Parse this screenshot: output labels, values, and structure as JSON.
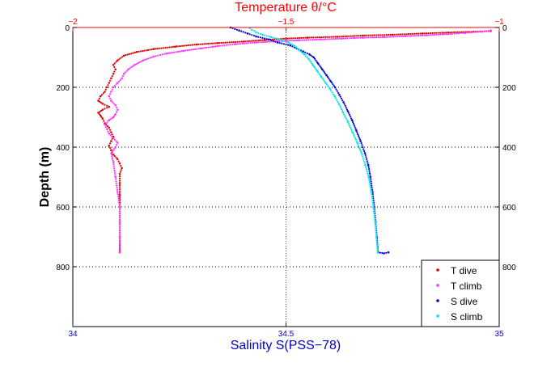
{
  "chart_data": {
    "type": "scatter",
    "title": "",
    "top_axis_label": "Temperature θ/°C",
    "bottom_axis_label": "Salinity S(PSS−78)",
    "ylabel": "Depth (m)",
    "top_axis": {
      "range": [
        -2,
        -1
      ],
      "ticks": [
        -2,
        -1.5,
        -1
      ],
      "tick_labels": [
        "−2",
        "−1.5",
        "−1"
      ]
    },
    "bottom_axis": {
      "range": [
        34,
        35
      ],
      "ticks": [
        34,
        34.5,
        35
      ],
      "tick_labels": [
        "34",
        "34.5",
        "35"
      ]
    },
    "y_axis": {
      "range": [
        0,
        1000
      ],
      "reversed": true,
      "ticks": [
        0,
        200,
        400,
        600,
        800
      ],
      "tick_labels": [
        "0",
        "200",
        "400",
        "600",
        "800"
      ]
    },
    "grid": true,
    "legend_position": "bottom-right",
    "colors": {
      "top_axis": "#ff0000",
      "bottom_axis": "#0000cc",
      "frame": "#000000"
    },
    "series": [
      {
        "name": "T dive",
        "axis": "top",
        "color": "#dd0000",
        "marker": "dot",
        "points": [
          [
            -1.02,
            12
          ],
          [
            -1.06,
            14
          ],
          [
            -1.12,
            17
          ],
          [
            -1.18,
            20
          ],
          [
            -1.25,
            24
          ],
          [
            -1.32,
            27
          ],
          [
            -1.38,
            31
          ],
          [
            -1.45,
            34
          ],
          [
            -1.5,
            37
          ],
          [
            -1.55,
            42
          ],
          [
            -1.6,
            47
          ],
          [
            -1.66,
            52
          ],
          [
            -1.71,
            57
          ],
          [
            -1.76,
            64
          ],
          [
            -1.81,
            72
          ],
          [
            -1.85,
            82
          ],
          [
            -1.88,
            94
          ],
          [
            -1.895,
            110
          ],
          [
            -1.905,
            125
          ],
          [
            -1.9,
            140
          ],
          [
            -1.905,
            155
          ],
          [
            -1.91,
            170
          ],
          [
            -1.915,
            185
          ],
          [
            -1.92,
            200
          ],
          [
            -1.925,
            215
          ],
          [
            -1.935,
            230
          ],
          [
            -1.94,
            245
          ],
          [
            -1.93,
            255
          ],
          [
            -1.915,
            265
          ],
          [
            -1.93,
            275
          ],
          [
            -1.94,
            285
          ],
          [
            -1.935,
            295
          ],
          [
            -1.93,
            305
          ],
          [
            -1.925,
            320
          ],
          [
            -1.915,
            335
          ],
          [
            -1.91,
            350
          ],
          [
            -1.905,
            365
          ],
          [
            -1.91,
            380
          ],
          [
            -1.915,
            395
          ],
          [
            -1.91,
            410
          ],
          [
            -1.905,
            425
          ],
          [
            -1.895,
            440
          ],
          [
            -1.89,
            455
          ],
          [
            -1.885,
            470
          ],
          [
            -1.89,
            490
          ],
          [
            -1.89,
            520
          ],
          [
            -1.89,
            560
          ],
          [
            -1.89,
            600
          ],
          [
            -1.89,
            650
          ],
          [
            -1.89,
            700
          ],
          [
            -1.89,
            750
          ]
        ]
      },
      {
        "name": "T climb",
        "axis": "top",
        "color": "#ff33ff",
        "marker": "dot",
        "points": [
          [
            -1.89,
            752
          ],
          [
            -1.89,
            700
          ],
          [
            -1.89,
            650
          ],
          [
            -1.89,
            600
          ],
          [
            -1.895,
            550
          ],
          [
            -1.9,
            500
          ],
          [
            -1.905,
            450
          ],
          [
            -1.91,
            420
          ],
          [
            -1.9,
            400
          ],
          [
            -1.895,
            385
          ],
          [
            -1.905,
            370
          ],
          [
            -1.915,
            355
          ],
          [
            -1.92,
            340
          ],
          [
            -1.925,
            325
          ],
          [
            -1.915,
            310
          ],
          [
            -1.905,
            300
          ],
          [
            -1.9,
            290
          ],
          [
            -1.895,
            275
          ],
          [
            -1.9,
            260
          ],
          [
            -1.91,
            245
          ],
          [
            -1.915,
            230
          ],
          [
            -1.91,
            215
          ],
          [
            -1.905,
            200
          ],
          [
            -1.895,
            185
          ],
          [
            -1.885,
            170
          ],
          [
            -1.88,
            155
          ],
          [
            -1.87,
            140
          ],
          [
            -1.855,
            125
          ],
          [
            -1.835,
            110
          ],
          [
            -1.81,
            97
          ],
          [
            -1.78,
            87
          ],
          [
            -1.74,
            78
          ],
          [
            -1.7,
            70
          ],
          [
            -1.66,
            62
          ],
          [
            -1.62,
            56
          ],
          [
            -1.57,
            50
          ],
          [
            -1.52,
            46
          ],
          [
            -1.47,
            43
          ],
          [
            -1.42,
            40
          ],
          [
            -1.37,
            37
          ],
          [
            -1.32,
            34
          ],
          [
            -1.27,
            32
          ],
          [
            -1.22,
            29
          ],
          [
            -1.17,
            26
          ],
          [
            -1.12,
            22
          ],
          [
            -1.08,
            18
          ],
          [
            -1.04,
            14
          ],
          [
            -1.02,
            10
          ]
        ]
      },
      {
        "name": "S dive",
        "axis": "bottom",
        "color": "#0000dd",
        "marker": "dot",
        "points": [
          [
            34.37,
            0
          ],
          [
            34.39,
            10
          ],
          [
            34.41,
            20
          ],
          [
            34.43,
            30
          ],
          [
            34.46,
            40
          ],
          [
            34.48,
            50
          ],
          [
            34.51,
            60
          ],
          [
            34.525,
            70
          ],
          [
            34.54,
            80
          ],
          [
            34.555,
            90
          ],
          [
            34.565,
            100
          ],
          [
            34.575,
            120
          ],
          [
            34.585,
            140
          ],
          [
            34.595,
            160
          ],
          [
            34.605,
            180
          ],
          [
            34.615,
            200
          ],
          [
            34.625,
            225
          ],
          [
            34.635,
            250
          ],
          [
            34.645,
            280
          ],
          [
            34.655,
            310
          ],
          [
            34.665,
            345
          ],
          [
            34.675,
            380
          ],
          [
            34.685,
            420
          ],
          [
            34.693,
            460
          ],
          [
            34.698,
            500
          ],
          [
            34.703,
            550
          ],
          [
            34.707,
            600
          ],
          [
            34.71,
            650
          ],
          [
            34.713,
            700
          ],
          [
            34.716,
            752
          ],
          [
            34.73,
            755
          ],
          [
            34.74,
            752
          ]
        ]
      },
      {
        "name": "S climb",
        "axis": "bottom",
        "color": "#00e5e5",
        "marker": "dot",
        "points": [
          [
            34.715,
            752
          ],
          [
            34.712,
            700
          ],
          [
            34.709,
            650
          ],
          [
            34.705,
            600
          ],
          [
            34.7,
            550
          ],
          [
            34.694,
            500
          ],
          [
            34.686,
            460
          ],
          [
            34.677,
            420
          ],
          [
            34.667,
            385
          ],
          [
            34.656,
            350
          ],
          [
            34.645,
            315
          ],
          [
            34.634,
            285
          ],
          [
            34.624,
            255
          ],
          [
            34.614,
            230
          ],
          [
            34.603,
            205
          ],
          [
            34.593,
            185
          ],
          [
            34.583,
            165
          ],
          [
            34.573,
            145
          ],
          [
            34.563,
            125
          ],
          [
            34.553,
            105
          ],
          [
            34.543,
            90
          ],
          [
            34.53,
            75
          ],
          [
            34.52,
            62
          ],
          [
            34.505,
            50
          ],
          [
            34.485,
            40
          ],
          [
            34.465,
            32
          ],
          [
            34.445,
            24
          ],
          [
            34.43,
            16
          ],
          [
            34.42,
            8
          ],
          [
            34.415,
            2
          ]
        ]
      }
    ]
  }
}
